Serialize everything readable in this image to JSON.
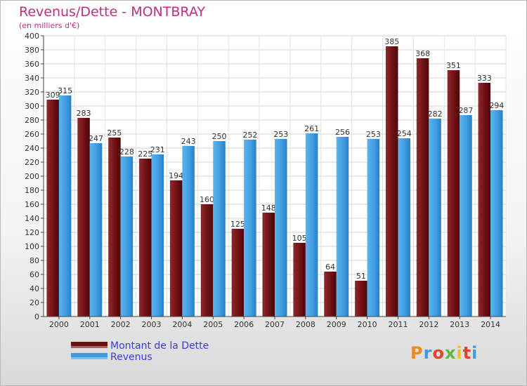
{
  "header": {
    "title": "Revenus/Dette - MONTBRAY",
    "subtitle": "(en milliers d'€)"
  },
  "colors": {
    "dette": "#6e0f12",
    "revenus": "#3d9be0",
    "title": "#c0307a",
    "legend_text": "#3c3cd2"
  },
  "legend": {
    "items": [
      {
        "label": "Montant de la Dette",
        "color": "#6e0f12"
      },
      {
        "label": "Revenus",
        "color": "#3d9be0"
      }
    ]
  },
  "logo": {
    "text": "Proxiti"
  },
  "chart_data": {
    "type": "bar",
    "categories": [
      "2000",
      "2001",
      "2002",
      "2003",
      "2004",
      "2005",
      "2006",
      "2007",
      "2008",
      "2009",
      "2010",
      "2011",
      "2012",
      "2013",
      "2014"
    ],
    "series": [
      {
        "name": "Montant de la Dette",
        "values": [
          309,
          283,
          255,
          225,
          194,
          160,
          125,
          148,
          105,
          64,
          51,
          385,
          368,
          351,
          333
        ]
      },
      {
        "name": "Revenus",
        "values": [
          315,
          247,
          228,
          231,
          243,
          250,
          252,
          253,
          261,
          256,
          253,
          254,
          282,
          287,
          294
        ]
      }
    ],
    "ylim": [
      0,
      400
    ],
    "ytick_step": 20,
    "grid": true,
    "legend_position": "bottom-left"
  }
}
